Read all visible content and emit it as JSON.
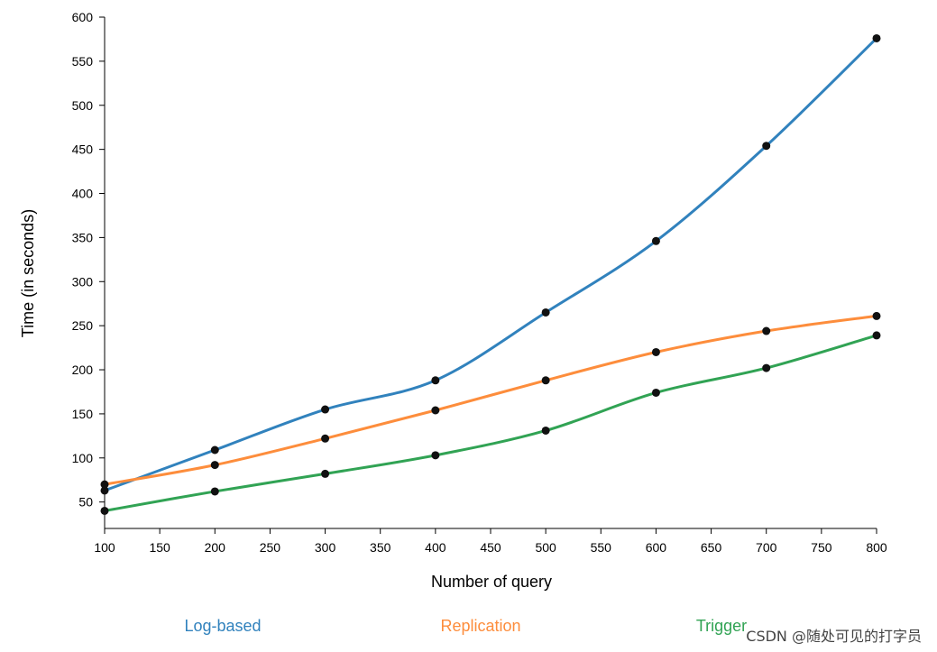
{
  "chart_data": {
    "type": "line",
    "xlabel": "Number of query",
    "ylabel": "Time (in seconds)",
    "xlim": [
      100,
      800
    ],
    "ylim": [
      20,
      600
    ],
    "x_ticks": [
      100,
      150,
      200,
      250,
      300,
      350,
      400,
      450,
      500,
      550,
      600,
      650,
      700,
      750,
      800
    ],
    "y_ticks": [
      50,
      100,
      150,
      200,
      250,
      300,
      350,
      400,
      450,
      500,
      550,
      600
    ],
    "grid": false,
    "legend_position": "bottom",
    "x": [
      100,
      200,
      300,
      400,
      500,
      600,
      700,
      800
    ],
    "series": [
      {
        "name": "Log-based",
        "color": "#3182bd",
        "values": [
          63,
          109,
          155,
          188,
          265,
          346,
          454,
          576
        ]
      },
      {
        "name": "Replication",
        "color": "#fd8d3c",
        "values": [
          70,
          92,
          122,
          154,
          188,
          220,
          244,
          261
        ]
      },
      {
        "name": "Trigger",
        "color": "#31a354",
        "values": [
          40,
          62,
          82,
          103,
          131,
          174,
          202,
          239
        ]
      }
    ]
  },
  "watermark": "CSDN @随处可见的打字员"
}
